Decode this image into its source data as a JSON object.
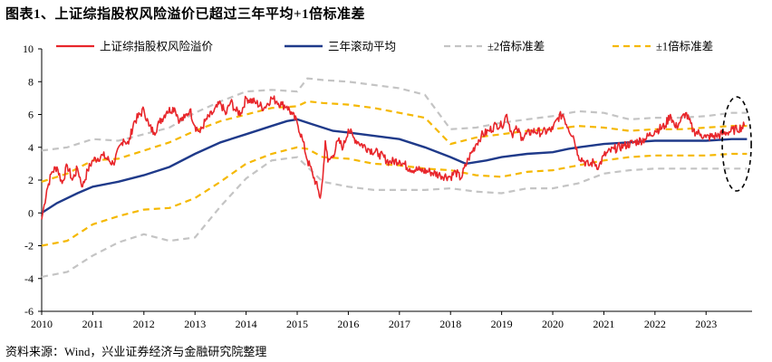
{
  "figure": {
    "title": "图表1、上证综指股权风险溢价已超过三年平均+1倍标准差",
    "source": "资料来源：Wind，兴业证券经济与金融研究院整理"
  },
  "colors": {
    "erp": "#e8262b",
    "avg": "#1f3a8a",
    "sd2": "#c4c4c4",
    "sd1": "#f5b800",
    "highlight": "#000000"
  },
  "chart_data": {
    "type": "line",
    "title": "",
    "xlabel": "",
    "ylabel": "",
    "xlim": [
      2010.0,
      2023.9
    ],
    "ylim": [
      -6,
      10
    ],
    "x_ticks": [
      "2010",
      "2011",
      "2012",
      "2013",
      "2014",
      "2015",
      "2016",
      "2017",
      "2018",
      "2019",
      "2020",
      "2021",
      "2022",
      "2023"
    ],
    "y_ticks": [
      -6,
      -4,
      -2,
      0,
      2,
      4,
      6,
      8,
      10
    ],
    "grid": false,
    "legend": "top",
    "annotations": [
      {
        "type": "dashed-ellipse",
        "near_x": 2023.6,
        "note": ""
      }
    ],
    "series": [
      {
        "name": "上证综指股权风险溢价",
        "key": "erp",
        "x": [
          2010.0,
          2010.05,
          2010.1,
          2010.2,
          2010.3,
          2010.4,
          2010.5,
          2010.6,
          2010.7,
          2010.8,
          2010.9,
          2011.0,
          2011.2,
          2011.4,
          2011.6,
          2011.7,
          2011.8,
          2012.0,
          2012.1,
          2012.2,
          2012.3,
          2012.45,
          2012.6,
          2012.7,
          2012.8,
          2012.9,
          2013.0,
          2013.1,
          2013.2,
          2013.35,
          2013.5,
          2013.6,
          2013.7,
          2013.8,
          2013.9,
          2014.0,
          2014.2,
          2014.35,
          2014.5,
          2014.6,
          2014.7,
          2014.8,
          2014.9,
          2015.0,
          2015.1,
          2015.2,
          2015.3,
          2015.4,
          2015.45,
          2015.5,
          2015.55,
          2015.6,
          2015.7,
          2015.8,
          2015.9,
          2016.0,
          2016.1,
          2016.2,
          2016.4,
          2016.6,
          2016.8,
          2017.0,
          2017.2,
          2017.4,
          2017.6,
          2017.8,
          2018.0,
          2018.1,
          2018.2,
          2018.35,
          2018.5,
          2018.6,
          2018.75,
          2018.9,
          2019.0,
          2019.1,
          2019.2,
          2019.3,
          2019.4,
          2019.6,
          2019.8,
          2020.0,
          2020.1,
          2020.2,
          2020.3,
          2020.4,
          2020.5,
          2020.6,
          2020.7,
          2020.8,
          2020.9,
          2021.0,
          2021.2,
          2021.4,
          2021.6,
          2021.8,
          2022.0,
          2022.2,
          2022.3,
          2022.4,
          2022.5,
          2022.6,
          2022.75,
          2022.9,
          2023.0,
          2023.2,
          2023.4,
          2023.6,
          2023.75
        ],
        "y": [
          -0.4,
          0.5,
          1.4,
          2.5,
          2.8,
          1.8,
          2.9,
          2.0,
          2.7,
          1.6,
          2.6,
          3.2,
          3.5,
          3.0,
          4.5,
          4.2,
          5.5,
          6.3,
          5.3,
          4.9,
          5.5,
          6.2,
          6.4,
          5.6,
          5.8,
          6.3,
          5.3,
          4.9,
          5.6,
          6.1,
          6.7,
          6.0,
          6.8,
          6.2,
          6.1,
          7.0,
          6.7,
          6.4,
          7.0,
          6.8,
          6.6,
          6.5,
          6.0,
          5.5,
          4.5,
          3.2,
          2.4,
          1.5,
          0.9,
          2.1,
          4.4,
          3.1,
          3.5,
          4.4,
          4.0,
          5.1,
          4.6,
          4.3,
          3.9,
          3.6,
          3.1,
          3.2,
          2.7,
          2.6,
          2.5,
          2.3,
          2.2,
          2.5,
          2.1,
          3.3,
          4.2,
          4.7,
          5.0,
          5.4,
          5.3,
          6.0,
          4.8,
          5.1,
          4.6,
          5.0,
          4.9,
          5.1,
          5.8,
          6.0,
          5.2,
          4.7,
          3.5,
          3.2,
          2.9,
          3.1,
          2.8,
          3.5,
          3.9,
          4.1,
          4.3,
          4.5,
          5.0,
          5.3,
          6.0,
          5.2,
          5.6,
          6.1,
          5.0,
          4.8,
          4.6,
          4.7,
          4.9,
          5.1,
          5.3
        ]
      },
      {
        "name": "三年滚动平均",
        "key": "avg",
        "x": [
          2010.0,
          2010.3,
          2010.7,
          2011.0,
          2011.5,
          2012.0,
          2012.5,
          2013.0,
          2013.5,
          2014.0,
          2014.5,
          2014.8,
          2015.0,
          2015.3,
          2015.7,
          2016.0,
          2016.5,
          2017.0,
          2017.5,
          2018.0,
          2018.3,
          2018.7,
          2019.0,
          2019.5,
          2020.0,
          2020.3,
          2020.5,
          2021.0,
          2021.5,
          2022.0,
          2022.5,
          2023.0,
          2023.5,
          2023.8
        ],
        "y": [
          0.0,
          0.6,
          1.2,
          1.6,
          1.9,
          2.3,
          2.8,
          3.6,
          4.3,
          4.8,
          5.3,
          5.6,
          5.7,
          5.4,
          5.0,
          4.9,
          4.7,
          4.5,
          4.0,
          3.4,
          3.0,
          3.2,
          3.4,
          3.6,
          3.7,
          3.9,
          4.0,
          4.2,
          4.3,
          4.4,
          4.4,
          4.4,
          4.5,
          4.5
        ]
      },
      {
        "name": "±2倍标准差",
        "key": "sd2",
        "x": [
          2010.0,
          2010.5,
          2011.0,
          2011.5,
          2012.0,
          2012.5,
          2013.0,
          2013.5,
          2014.0,
          2014.5,
          2015.0,
          2015.2,
          2015.5,
          2016.0,
          2016.5,
          2017.0,
          2017.5,
          2018.0,
          2018.5,
          2019.0,
          2019.5,
          2020.0,
          2020.5,
          2021.0,
          2021.5,
          2022.0,
          2022.5,
          2023.0,
          2023.5,
          2023.8
        ],
        "y_upper": [
          3.8,
          4.0,
          4.5,
          4.4,
          4.8,
          5.2,
          6.1,
          6.8,
          7.4,
          7.5,
          7.4,
          8.2,
          8.1,
          8.0,
          7.8,
          7.6,
          7.2,
          5.1,
          5.2,
          5.5,
          5.7,
          5.9,
          6.2,
          6.1,
          5.7,
          5.8,
          5.8,
          5.9,
          6.1,
          6.1
        ],
        "y_lower": [
          -3.9,
          -3.6,
          -2.6,
          -1.8,
          -1.3,
          -1.7,
          -1.5,
          0.4,
          2.1,
          3.2,
          3.4,
          2.8,
          1.9,
          1.6,
          1.4,
          1.4,
          1.4,
          1.5,
          1.3,
          1.2,
          1.5,
          1.5,
          1.8,
          2.4,
          2.6,
          2.7,
          2.7,
          2.7,
          2.7,
          2.7
        ]
      },
      {
        "name": "±1倍标准差",
        "key": "sd1",
        "x": [
          2010.0,
          2010.5,
          2011.0,
          2011.5,
          2012.0,
          2012.5,
          2013.0,
          2013.5,
          2014.0,
          2014.5,
          2015.0,
          2015.2,
          2015.5,
          2016.0,
          2016.5,
          2017.0,
          2017.5,
          2018.0,
          2018.5,
          2019.0,
          2019.5,
          2020.0,
          2020.5,
          2021.0,
          2021.5,
          2022.0,
          2022.5,
          2023.0,
          2023.5,
          2023.8
        ],
        "y_upper": [
          1.9,
          2.4,
          3.2,
          3.3,
          3.8,
          4.3,
          5.0,
          5.6,
          6.0,
          6.4,
          6.5,
          6.8,
          6.7,
          6.6,
          6.4,
          6.1,
          5.8,
          4.2,
          4.6,
          4.8,
          5.0,
          5.1,
          5.3,
          5.2,
          5.0,
          5.1,
          5.1,
          5.2,
          5.3,
          5.3
        ],
        "y_lower": [
          -2.0,
          -1.7,
          -0.7,
          -0.2,
          0.2,
          0.3,
          0.9,
          1.9,
          3.0,
          3.6,
          4.0,
          3.9,
          3.4,
          3.3,
          3.0,
          2.9,
          2.7,
          2.6,
          2.3,
          2.2,
          2.5,
          2.6,
          2.9,
          3.2,
          3.4,
          3.5,
          3.5,
          3.5,
          3.6,
          3.6
        ]
      }
    ]
  }
}
